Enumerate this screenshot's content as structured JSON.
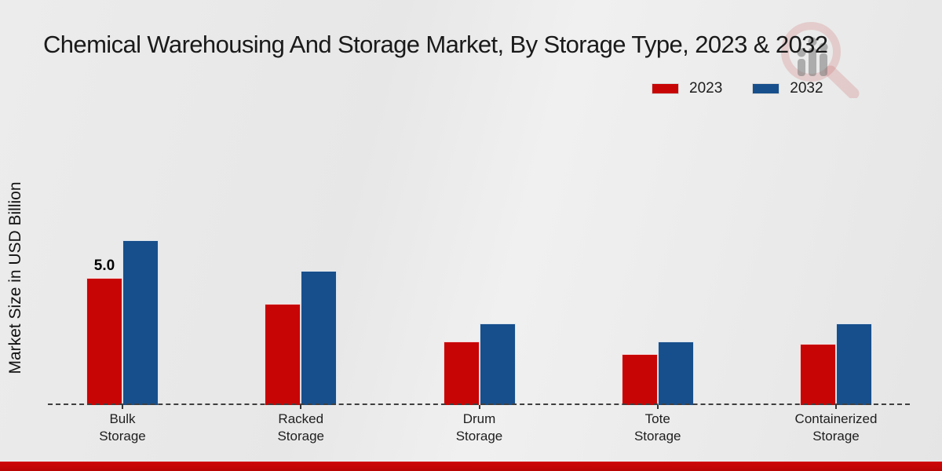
{
  "page": {
    "title": "Chemical Warehousing And Storage Market, By Storage Type, 2023 & 2032",
    "ylabel": "Market Size in USD Billion",
    "watermark_name": "market-research-future-logo"
  },
  "colors": {
    "series_2023": "#c80505",
    "series_2032": "#174f8c",
    "bottom_strip": "#c00505",
    "baseline": "#3f3f3f"
  },
  "chart_data": {
    "type": "bar",
    "title": "Chemical Warehousing And Storage Market, By Storage Type, 2023 & 2032",
    "xlabel": "",
    "ylabel": "Market Size in USD Billion",
    "categories": [
      "Bulk Storage",
      "Racked Storage",
      "Drum Storage",
      "Tote Storage",
      "Containerized Storage"
    ],
    "category_labels": [
      "Bulk\nStorage",
      "Racked\nStorage",
      "Drum\nStorage",
      "Tote\nStorage",
      "Containerized\nStorage"
    ],
    "series": [
      {
        "name": "2023",
        "color": "#c80505",
        "values": [
          5.0,
          4.0,
          2.5,
          2.0,
          2.4
        ]
      },
      {
        "name": "2032",
        "color": "#174f8c",
        "values": [
          6.5,
          5.3,
          3.2,
          2.5,
          3.2
        ]
      }
    ],
    "annotations": [
      {
        "series": "2023",
        "category": "Bulk Storage",
        "text": "5.0"
      }
    ],
    "ylim": [
      0,
      7.5
    ],
    "grid": false,
    "axis_line": "dashed-zero-baseline",
    "legend_position": "top-right",
    "units": "USD Billion"
  }
}
